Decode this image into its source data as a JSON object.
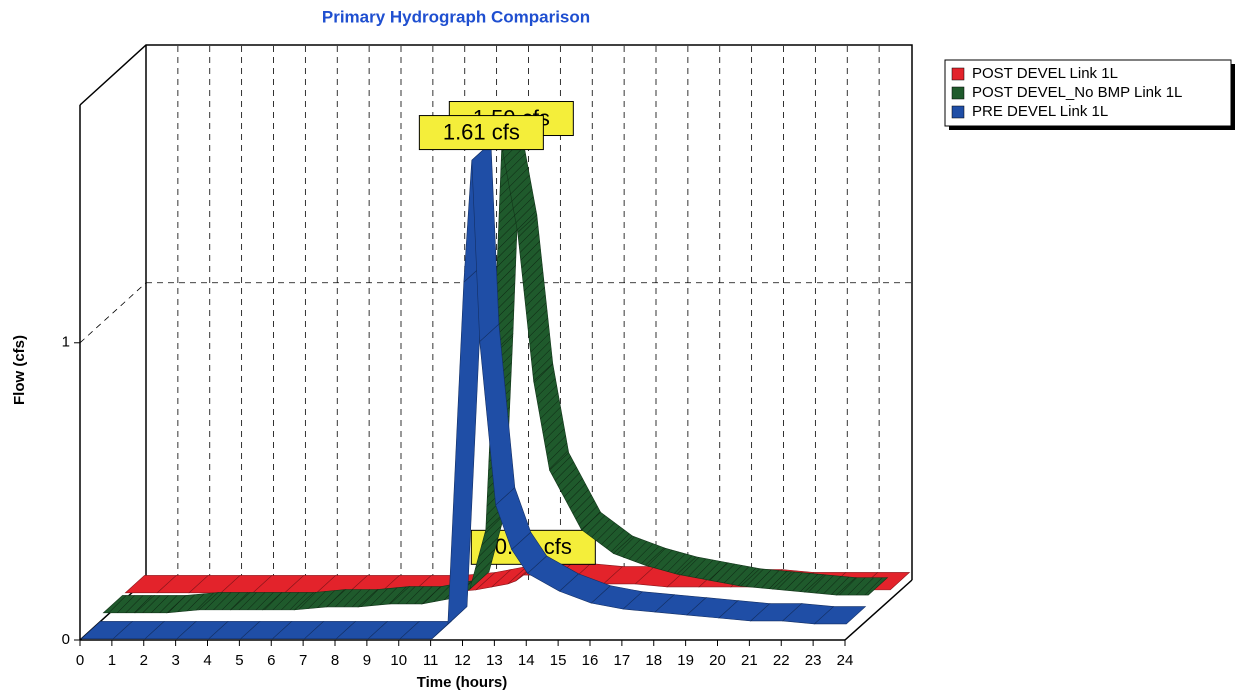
{
  "chart_data": {
    "type": "ribbon3d",
    "title": "Primary Hydrograph Comparison",
    "xlabel": "Time (hours)",
    "ylabel": "Flow (cfs)",
    "x": [
      0,
      1,
      2,
      3,
      4,
      5,
      6,
      7,
      8,
      9,
      10,
      11,
      11.5,
      12,
      12.25,
      12.5,
      13,
      13.5,
      14,
      15,
      16,
      17,
      18,
      19,
      20,
      21,
      22,
      23,
      24
    ],
    "xlim": [
      0,
      24
    ],
    "xticks": [
      0,
      1,
      2,
      3,
      4,
      5,
      6,
      7,
      8,
      9,
      10,
      11,
      12,
      13,
      14,
      15,
      16,
      17,
      18,
      19,
      20,
      21,
      22,
      23,
      24
    ],
    "ylim": [
      0,
      1.8
    ],
    "yticks": [
      0,
      1
    ],
    "grid": true,
    "legend": "upper right",
    "series": [
      {
        "name": "POST DEVEL Link 1L",
        "color": "#e3232b",
        "peak_label": "0.08 cfs",
        "values": [
          0.02,
          0.02,
          0.02,
          0.02,
          0.02,
          0.02,
          0.02,
          0.02,
          0.02,
          0.02,
          0.02,
          0.03,
          0.04,
          0.05,
          0.06,
          0.08,
          0.08,
          0.07,
          0.06,
          0.05,
          0.05,
          0.04,
          0.04,
          0.04,
          0.04,
          0.03,
          0.03,
          0.03,
          0.03
        ]
      },
      {
        "name": "POST DEVEL_No BMP Link 1L",
        "color": "#1f5a2c",
        "peak_label": "1.59 cfs",
        "values": [
          0.02,
          0.02,
          0.02,
          0.03,
          0.03,
          0.03,
          0.03,
          0.04,
          0.04,
          0.05,
          0.05,
          0.07,
          0.1,
          0.3,
          0.9,
          1.59,
          1.3,
          0.8,
          0.5,
          0.3,
          0.22,
          0.18,
          0.15,
          0.13,
          0.11,
          0.1,
          0.09,
          0.08,
          0.08
        ]
      },
      {
        "name": "PRE DEVEL Link 1L",
        "color": "#1f4ea6",
        "peak_label": "1.61 cfs",
        "values": [
          0,
          0,
          0,
          0,
          0,
          0,
          0,
          0,
          0,
          0,
          0,
          0,
          0.05,
          1.2,
          1.61,
          1.0,
          0.45,
          0.3,
          0.22,
          0.16,
          0.12,
          0.1,
          0.09,
          0.08,
          0.07,
          0.06,
          0.06,
          0.05,
          0.05
        ]
      }
    ]
  }
}
